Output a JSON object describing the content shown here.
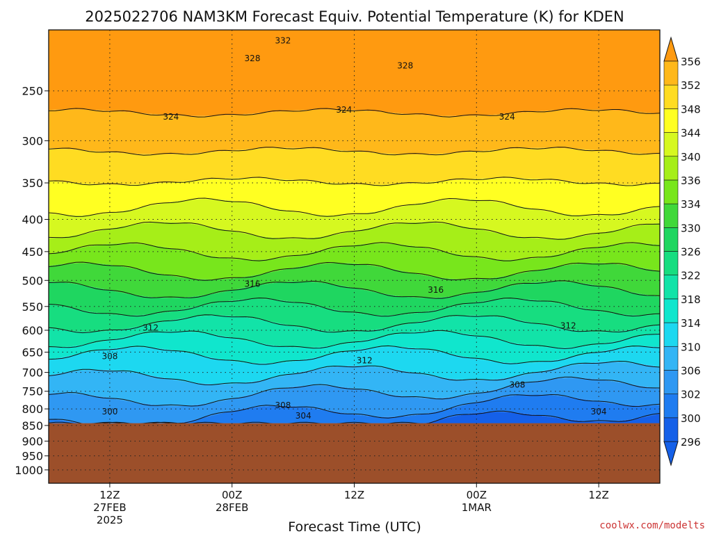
{
  "chart_data": {
    "type": "heatmap",
    "title": "2025022706 NAM3KM Forecast Equiv. Potential Temperature (K) for KDEN",
    "xlabel": "Forecast Time (UTC)",
    "ylabel": "",
    "credit": "coolwx.com/modelts",
    "x_range_hours": [
      0,
      60
    ],
    "x_ticks": [
      {
        "hour": 6,
        "line1": "12Z",
        "line2": "27FEB",
        "line3": "2025"
      },
      {
        "hour": 18,
        "line1": "00Z",
        "line2": "28FEB",
        "line3": ""
      },
      {
        "hour": 30,
        "line1": "12Z",
        "line2": "",
        "line3": ""
      },
      {
        "hour": 42,
        "line1": "00Z",
        "line2": "1MAR",
        "line3": ""
      },
      {
        "hour": 54,
        "line1": "12Z",
        "line2": "",
        "line3": ""
      }
    ],
    "y_scale": "log-pressure",
    "y_range_hpa": [
      200,
      1050
    ],
    "y_ticks": [
      "250",
      "300",
      "350",
      "400",
      "450",
      "500",
      "550",
      "600",
      "650",
      "700",
      "750",
      "800",
      "850",
      "900",
      "950",
      "1000"
    ],
    "surface_pressure_hpa": 843,
    "ground_color": "#9c4f2a",
    "grid": true,
    "colorbar": {
      "levels": [
        "296",
        "300",
        "302",
        "306",
        "310",
        "314",
        "318",
        "322",
        "326",
        "330",
        "334",
        "336",
        "340",
        "344",
        "348",
        "352",
        "356"
      ],
      "colors": [
        "#1560e8",
        "#1f7cf0",
        "#2f98f2",
        "#33b5f5",
        "#1dd8f0",
        "#10e6cd",
        "#12e3a8",
        "#17dd80",
        "#1fd660",
        "#40d83a",
        "#78e61c",
        "#a6ee18",
        "#d6f820",
        "#ffff22",
        "#ffdc22",
        "#ffb81a",
        "#ff9a10"
      ]
    },
    "contour_labels": [
      {
        "text": "332",
        "hour": 23,
        "p": 208
      },
      {
        "text": "328",
        "hour": 20,
        "p": 222
      },
      {
        "text": "328",
        "hour": 35,
        "p": 228
      },
      {
        "text": "324",
        "hour": 12,
        "p": 275
      },
      {
        "text": "324",
        "hour": 29,
        "p": 268
      },
      {
        "text": "324",
        "hour": 45,
        "p": 275
      },
      {
        "text": "316",
        "hour": 20,
        "p": 507
      },
      {
        "text": "316",
        "hour": 38,
        "p": 518
      },
      {
        "text": "312",
        "hour": 10,
        "p": 595
      },
      {
        "text": "312",
        "hour": 51,
        "p": 590
      },
      {
        "text": "312",
        "hour": 31,
        "p": 670
      },
      {
        "text": "308",
        "hour": 6,
        "p": 660
      },
      {
        "text": "308",
        "hour": 46,
        "p": 733
      },
      {
        "text": "308",
        "hour": 23,
        "p": 790
      },
      {
        "text": "300",
        "hour": 6,
        "p": 808
      },
      {
        "text": "304",
        "hour": 25,
        "p": 820
      },
      {
        "text": "304",
        "hour": 54,
        "p": 808
      }
    ]
  }
}
